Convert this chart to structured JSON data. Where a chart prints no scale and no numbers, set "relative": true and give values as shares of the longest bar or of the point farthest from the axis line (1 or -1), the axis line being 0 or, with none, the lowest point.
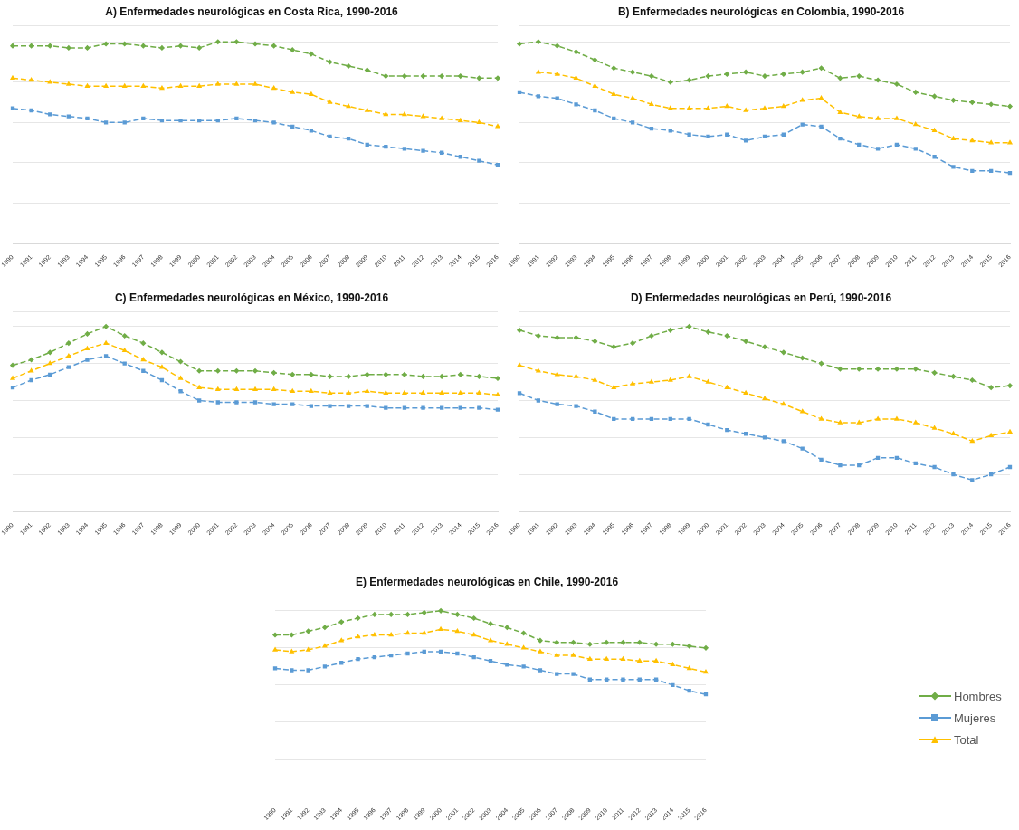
{
  "chart_data": [
    {
      "type": "line",
      "title": "A) Enfermedades neurológicas en Costa Rica, 1990-2016",
      "relative": true,
      "grid": "y",
      "legend": false,
      "tick_labels": "x",
      "line_style": "dashed",
      "categories": [
        "1990",
        "1991",
        "1992",
        "1993",
        "1994",
        "1995",
        "1996",
        "1997",
        "1998",
        "1999",
        "2000",
        "2001",
        "2002",
        "2003",
        "2004",
        "2005",
        "2006",
        "2007",
        "2008",
        "2009",
        "2010",
        "2011",
        "2012",
        "2013",
        "2014",
        "2015",
        "2016"
      ],
      "series": [
        {
          "color": "#70ad47",
          "marker": "diamond",
          "values": [
            0.98,
            0.98,
            0.98,
            0.97,
            0.97,
            0.99,
            0.99,
            0.98,
            0.97,
            0.98,
            0.97,
            1,
            1,
            0.99,
            0.98,
            0.96,
            0.94,
            0.9,
            0.88,
            0.86,
            0.83,
            0.83,
            0.83,
            0.83,
            0.83,
            0.82,
            0.82
          ]
        },
        {
          "color": "#5b9bd5",
          "marker": "square",
          "values": [
            0.67,
            0.66,
            0.64,
            0.63,
            0.62,
            0.6,
            0.6,
            0.62,
            0.61,
            0.61,
            0.61,
            0.61,
            0.62,
            0.61,
            0.6,
            0.58,
            0.56,
            0.53,
            0.52,
            0.49,
            0.48,
            0.47,
            0.46,
            0.45,
            0.43,
            0.41,
            0.39
          ]
        },
        {
          "color": "#ffc000",
          "marker": "triangle",
          "values": [
            0.82,
            0.81,
            0.8,
            0.79,
            0.78,
            0.78,
            0.78,
            0.78,
            0.77,
            0.78,
            0.78,
            0.79,
            0.79,
            0.79,
            0.77,
            0.75,
            0.74,
            0.7,
            0.68,
            0.66,
            0.64,
            0.64,
            0.63,
            0.62,
            0.61,
            0.6,
            0.58
          ]
        }
      ]
    },
    {
      "type": "line",
      "title": "B) Enfermedades neurológicas en Colombia, 1990-2016",
      "relative": true,
      "grid": "y",
      "legend": false,
      "tick_labels": "x",
      "line_style": "dashed",
      "categories": [
        "1990",
        "1991",
        "1992",
        "1993",
        "1994",
        "1995",
        "1996",
        "1997",
        "1998",
        "1999",
        "2000",
        "2001",
        "2002",
        "2003",
        "2004",
        "2005",
        "2006",
        "2007",
        "2008",
        "2009",
        "2010",
        "2011",
        "2012",
        "2013",
        "2014",
        "2015",
        "2016"
      ],
      "series": [
        {
          "color": "#70ad47",
          "marker": "diamond",
          "values": [
            0.99,
            1,
            0.98,
            0.95,
            0.91,
            0.87,
            0.85,
            0.83,
            0.8,
            0.81,
            0.83,
            0.84,
            0.85,
            0.83,
            0.84,
            0.85,
            0.87,
            0.82,
            0.83,
            0.81,
            0.79,
            0.75,
            0.73,
            0.71,
            0.7,
            0.69,
            0.68
          ]
        },
        {
          "color": "#5b9bd5",
          "marker": "square",
          "values": [
            0.75,
            0.73,
            0.72,
            0.69,
            0.66,
            0.62,
            0.6,
            0.57,
            0.56,
            0.54,
            0.53,
            0.54,
            0.51,
            0.53,
            0.54,
            0.59,
            0.58,
            0.52,
            0.49,
            0.47,
            0.49,
            0.47,
            0.43,
            0.38,
            0.36,
            0.36,
            0.35
          ]
        },
        {
          "color": "#ffc000",
          "marker": "triangle",
          "values": [
            null,
            0.85,
            0.84,
            0.82,
            0.78,
            0.74,
            0.72,
            0.69,
            0.67,
            0.67,
            0.67,
            0.68,
            0.66,
            0.67,
            0.68,
            0.71,
            0.72,
            0.65,
            0.63,
            0.62,
            0.62,
            0.59,
            0.56,
            0.52,
            0.51,
            0.5,
            0.5
          ]
        }
      ]
    },
    {
      "type": "line",
      "title": "C) Enfermedades neurológicas en México, 1990-2016",
      "relative": true,
      "grid": "y",
      "legend": false,
      "tick_labels": "x",
      "line_style": "dashed",
      "categories": [
        "1990",
        "1991",
        "1992",
        "1993",
        "1994",
        "1995",
        "1996",
        "1997",
        "1998",
        "1999",
        "2000",
        "2001",
        "2002",
        "2003",
        "2004",
        "2005",
        "2006",
        "2007",
        "2008",
        "2009",
        "2010",
        "2011",
        "2012",
        "2013",
        "2014",
        "2015",
        "2016"
      ],
      "series": [
        {
          "color": "#70ad47",
          "marker": "diamond",
          "values": [
            0.79,
            0.82,
            0.86,
            0.91,
            0.96,
            1,
            0.95,
            0.91,
            0.86,
            0.81,
            0.76,
            0.76,
            0.76,
            0.76,
            0.75,
            0.74,
            0.74,
            0.73,
            0.73,
            0.74,
            0.74,
            0.74,
            0.73,
            0.73,
            0.74,
            0.73,
            0.72
          ]
        },
        {
          "color": "#5b9bd5",
          "marker": "square",
          "values": [
            0.67,
            0.71,
            0.74,
            0.78,
            0.82,
            0.84,
            0.8,
            0.76,
            0.71,
            0.65,
            0.6,
            0.59,
            0.59,
            0.59,
            0.58,
            0.58,
            0.57,
            0.57,
            0.57,
            0.57,
            0.56,
            0.56,
            0.56,
            0.56,
            0.56,
            0.56,
            0.55
          ]
        },
        {
          "color": "#ffc000",
          "marker": "triangle",
          "values": [
            0.72,
            0.76,
            0.8,
            0.84,
            0.88,
            0.91,
            0.87,
            0.82,
            0.78,
            0.72,
            0.67,
            0.66,
            0.66,
            0.66,
            0.66,
            0.65,
            0.65,
            0.64,
            0.64,
            0.65,
            0.64,
            0.64,
            0.64,
            0.64,
            0.64,
            0.64,
            0.63
          ]
        }
      ]
    },
    {
      "type": "line",
      "title": "D) Enfermedades neurológicas en Perú, 1990-2016",
      "relative": true,
      "grid": "y",
      "legend": false,
      "tick_labels": "x",
      "line_style": "dashed",
      "categories": [
        "1990",
        "1991",
        "1992",
        "1993",
        "1994",
        "1995",
        "1996",
        "1997",
        "1998",
        "1999",
        "2000",
        "2001",
        "2002",
        "2003",
        "2004",
        "2005",
        "2006",
        "2007",
        "2008",
        "2009",
        "2010",
        "2011",
        "2012",
        "2013",
        "2014",
        "2015",
        "2016"
      ],
      "series": [
        {
          "color": "#70ad47",
          "marker": "diamond",
          "values": [
            0.98,
            0.95,
            0.94,
            0.94,
            0.92,
            0.89,
            0.91,
            0.95,
            0.98,
            1,
            0.97,
            0.95,
            0.92,
            0.89,
            0.86,
            0.83,
            0.8,
            0.77,
            0.77,
            0.77,
            0.77,
            0.77,
            0.75,
            0.73,
            0.71,
            0.67,
            0.68
          ]
        },
        {
          "color": "#5b9bd5",
          "marker": "square",
          "values": [
            0.64,
            0.6,
            0.58,
            0.57,
            0.54,
            0.5,
            0.5,
            0.5,
            0.5,
            0.5,
            0.47,
            0.44,
            0.42,
            0.4,
            0.38,
            0.34,
            0.28,
            0.25,
            0.25,
            0.29,
            0.29,
            0.26,
            0.24,
            0.2,
            0.17,
            0.2,
            0.24
          ]
        },
        {
          "color": "#ffc000",
          "marker": "triangle",
          "values": [
            0.79,
            0.76,
            0.74,
            0.73,
            0.71,
            0.67,
            0.69,
            0.7,
            0.71,
            0.73,
            0.7,
            0.67,
            0.64,
            0.61,
            0.58,
            0.54,
            0.5,
            0.48,
            0.48,
            0.5,
            0.5,
            0.48,
            0.45,
            0.42,
            0.38,
            0.41,
            0.43
          ]
        }
      ]
    },
    {
      "type": "line",
      "title": "E) Enfermedades neurológicas en Chile, 1990-2016",
      "relative": true,
      "grid": "y",
      "legend": "right",
      "tick_labels": "x",
      "line_style": "dashed",
      "categories": [
        "1990",
        "1991",
        "1992",
        "1993",
        "1994",
        "1995",
        "1996",
        "1997",
        "1998",
        "1999",
        "2000",
        "2001",
        "2002",
        "2003",
        "2004",
        "2005",
        "2006",
        "2007",
        "2008",
        "2009",
        "2010",
        "2011",
        "2012",
        "2013",
        "2014",
        "2015",
        "2016"
      ],
      "series": [
        {
          "name": "Hombres",
          "color": "#70ad47",
          "marker": "diamond",
          "values": [
            0.87,
            0.87,
            0.89,
            0.91,
            0.94,
            0.96,
            0.98,
            0.98,
            0.98,
            0.99,
            1,
            0.98,
            0.96,
            0.93,
            0.91,
            0.88,
            0.84,
            0.83,
            0.83,
            0.82,
            0.83,
            0.83,
            0.83,
            0.82,
            0.82,
            0.81,
            0.8
          ]
        },
        {
          "name": "Mujeres",
          "color": "#5b9bd5",
          "marker": "square",
          "values": [
            0.69,
            0.68,
            0.68,
            0.7,
            0.72,
            0.74,
            0.75,
            0.76,
            0.77,
            0.78,
            0.78,
            0.77,
            0.75,
            0.73,
            0.71,
            0.7,
            0.68,
            0.66,
            0.66,
            0.63,
            0.63,
            0.63,
            0.63,
            0.63,
            0.6,
            0.57,
            0.55
          ]
        },
        {
          "name": "Total",
          "color": "#ffc000",
          "marker": "triangle",
          "values": [
            0.79,
            0.78,
            0.79,
            0.81,
            0.84,
            0.86,
            0.87,
            0.87,
            0.88,
            0.88,
            0.9,
            0.89,
            0.87,
            0.84,
            0.82,
            0.8,
            0.78,
            0.76,
            0.76,
            0.74,
            0.74,
            0.74,
            0.73,
            0.73,
            0.71,
            0.69,
            0.67
          ]
        }
      ]
    }
  ]
}
